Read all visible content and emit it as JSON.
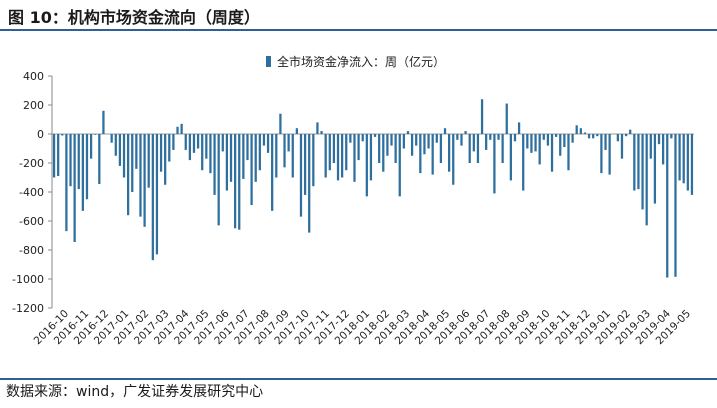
{
  "figure": {
    "title": "图 10：机构市场资金流向（周度）",
    "source": "数据来源：wind，广发证券发展研究中心"
  },
  "chart_data": {
    "type": "bar",
    "title": "",
    "xlabel": "",
    "ylabel": "",
    "ylim": [
      -1200,
      400
    ],
    "yticks": [
      -1200,
      -1000,
      -800,
      -600,
      -400,
      -200,
      0,
      200,
      400
    ],
    "grid": false,
    "legend_position": "top-center",
    "bar_color": "#2e6f9e",
    "x_tick_labels": [
      "2016-10",
      "2016-11",
      "2016-12",
      "2017-01",
      "2017-02",
      "2017-03",
      "2017-04",
      "2017-05",
      "2017-06",
      "2017-07",
      "2017-08",
      "2017-09",
      "2017-10",
      "2017-11",
      "2017-12",
      "2018-01",
      "2018-02",
      "2018-03",
      "2018-04",
      "2018-05",
      "2018-06",
      "2018-07",
      "2018-08",
      "2018-09",
      "2018-10",
      "2018-11",
      "2018-12",
      "2019-01",
      "2019-02",
      "2019-03",
      "2019-04",
      "2019-05"
    ],
    "series": [
      {
        "name": "全市场资金净流入：周（亿元）",
        "values": [
          -300,
          -290,
          -10,
          -670,
          -360,
          -745,
          -380,
          -530,
          -450,
          -170,
          -5,
          -345,
          160,
          0,
          -60,
          -150,
          -220,
          -300,
          -560,
          -400,
          -240,
          -570,
          -640,
          -370,
          -870,
          -830,
          -260,
          -350,
          -190,
          -110,
          50,
          70,
          -110,
          -180,
          -130,
          -100,
          -250,
          -170,
          -270,
          -420,
          -630,
          -120,
          -390,
          -330,
          -650,
          -660,
          -310,
          -180,
          -490,
          -330,
          -250,
          -80,
          -130,
          -530,
          -300,
          140,
          -230,
          -120,
          -300,
          40,
          -570,
          -420,
          -680,
          -360,
          80,
          20,
          -300,
          -250,
          -200,
          -320,
          -300,
          -250,
          -60,
          -330,
          -180,
          -50,
          -430,
          -320,
          -20,
          -200,
          -260,
          -150,
          -80,
          -200,
          -430,
          -100,
          20,
          -150,
          -80,
          -270,
          -140,
          -100,
          -280,
          -60,
          -200,
          40,
          -260,
          -350,
          -40,
          -80,
          20,
          -200,
          -120,
          -200,
          240,
          -110,
          -40,
          -410,
          -40,
          -200,
          210,
          -320,
          -50,
          80,
          -390,
          -100,
          -130,
          -120,
          -210,
          -40,
          -80,
          -260,
          -20,
          -150,
          -90,
          -250,
          -60,
          60,
          40,
          10,
          -30,
          -30,
          -15,
          -270,
          -110,
          -280,
          0,
          -50,
          -170,
          -15,
          30,
          -390,
          -380,
          -520,
          -630,
          -170,
          -480,
          -70,
          -210,
          -990,
          -30,
          -985,
          -320,
          -340,
          -390,
          -420
        ]
      }
    ]
  }
}
